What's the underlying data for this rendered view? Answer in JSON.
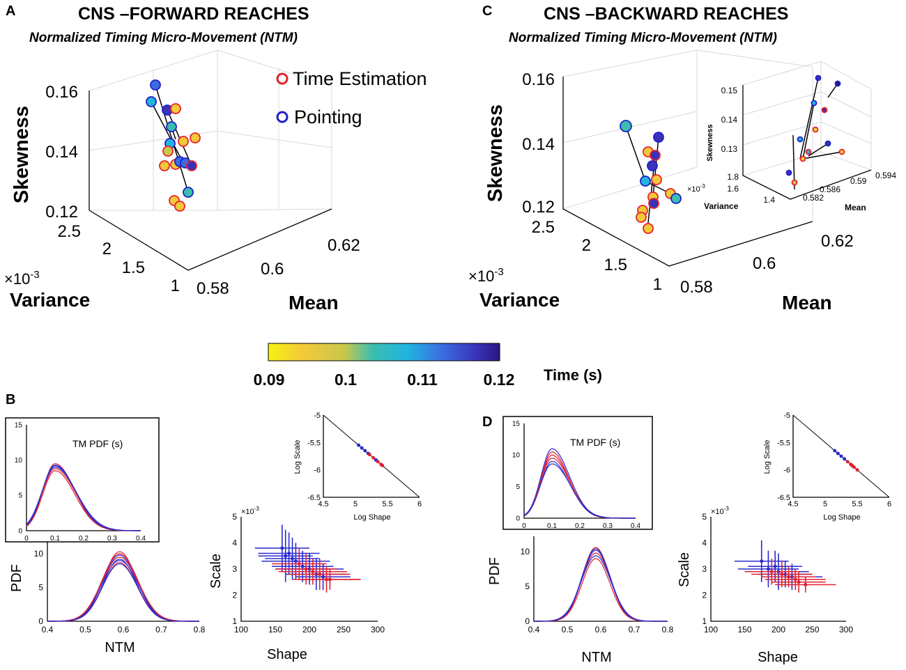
{
  "chart_data": [
    {
      "panel": "A",
      "type": "scatter3d",
      "title": "CNS –FORWARD REACHES",
      "subtitle": "Normalized Timing Micro-Movement (NTM)",
      "zlabel": "Skewness",
      "xlabel": "Mean",
      "ylabel": "Variance",
      "variance_exponent": "×10",
      "variance_exponent_power": "-3",
      "z_ticks": [
        "0.16",
        "0.14",
        "0.12"
      ],
      "variance_ticks": [
        "2.5",
        "2",
        "1.5",
        "1"
      ],
      "mean_ticks": [
        "0.58",
        "0.6",
        "0.62"
      ],
      "legend": [
        "Time Estimation",
        "Pointing"
      ],
      "legend_colors": [
        "#e8202a",
        "#2020c8"
      ]
    },
    {
      "panel": "C",
      "type": "scatter3d",
      "title": "CNS –BACKWARD REACHES",
      "subtitle": "Normalized Timing Micro-Movement (NTM)",
      "zlabel": "Skewness",
      "xlabel": "Mean",
      "ylabel": "Variance",
      "variance_exponent": "×10",
      "variance_exponent_power": "-3",
      "z_ticks": [
        "0.16",
        "0.14",
        "0.12"
      ],
      "variance_ticks": [
        "2.5",
        "2",
        "1.5",
        "1"
      ],
      "mean_ticks": [
        "0.58",
        "0.6",
        "0.62"
      ],
      "inset": {
        "zlabel": "Skewness",
        "xlabel": "Mean",
        "ylabel": "Variance",
        "z_ticks": [
          "0.15",
          "0.14",
          "0.13"
        ],
        "variance_ticks": [
          "1.8",
          "1.6",
          "1.4"
        ],
        "mean_ticks": [
          "0.582",
          "0.586",
          "0.59",
          "0.594"
        ],
        "exponent": "×10",
        "exponent_power": "-3"
      }
    },
    {
      "type": "colorbar",
      "label": "Time (s)",
      "ticks": [
        "0.09",
        "0.1",
        "0.11",
        "0.12"
      ],
      "range": [
        0.09,
        0.12
      ],
      "colormap": [
        "#f8f210",
        "#f2c93a",
        "#c8c84c",
        "#3cbdb0",
        "#21b5e0",
        "#3a6ee0",
        "#3a32b8",
        "#2a1880"
      ]
    },
    {
      "panel": "B",
      "type": "line",
      "inset_label": "TM PDF (s)",
      "inset_x_ticks": [
        "0",
        "0.1",
        "0.2",
        "0.3",
        "0.4"
      ],
      "inset_y_ticks": [
        "0",
        "5",
        "10",
        "15"
      ],
      "inset_peak": 9.5,
      "inset_mode": 0.1,
      "ylabel": "PDF",
      "xlabel": "NTM",
      "x_ticks": [
        "0.4",
        "0.5",
        "0.6",
        "0.7",
        "0.8"
      ],
      "y_ticks": [
        "0",
        "5",
        "10"
      ],
      "mode": 0.59,
      "peak_range": [
        8.5,
        10.3
      ]
    },
    {
      "panel": "B",
      "type": "scatter_errorbar",
      "ylabel": "Scale",
      "xlabel": "Shape",
      "exponent": "×10",
      "exponent_power": "-3",
      "x_ticks": [
        "100",
        "150",
        "200",
        "250",
        "300"
      ],
      "y_ticks": [
        "1",
        "2",
        "3",
        "4",
        "5"
      ],
      "inset": {
        "xlabel": "Log Shape",
        "ylabel": "Log Scale",
        "x_ticks": [
          "4.5",
          "5",
          "5.5",
          "6"
        ],
        "y_ticks": [
          "-5",
          "-5.5",
          "-6",
          "-6.5"
        ]
      }
    },
    {
      "panel": "D",
      "type": "line",
      "inset_label": "TM PDF (s)",
      "inset_x_ticks": [
        "0",
        "0.1",
        "0.2",
        "0.3",
        "0.4"
      ],
      "inset_y_ticks": [
        "0",
        "5",
        "10",
        "15"
      ],
      "inset_peak": 10.5,
      "inset_mode": 0.1,
      "ylabel": "PDF",
      "xlabel": "NTM",
      "x_ticks": [
        "0.4",
        "0.5",
        "0.6",
        "0.7",
        "0.8"
      ],
      "y_ticks": [
        "0",
        "5",
        "10"
      ],
      "mode": 0.585,
      "peak_range": [
        9.0,
        10.6
      ]
    },
    {
      "panel": "D",
      "type": "scatter_errorbar",
      "ylabel": "Scale",
      "xlabel": "Shape",
      "exponent": "×10",
      "exponent_power": "-3",
      "x_ticks": [
        "100",
        "150",
        "200",
        "250",
        "300"
      ],
      "y_ticks": [
        "1",
        "2",
        "3",
        "4",
        "5"
      ],
      "inset": {
        "xlabel": "Log Shape",
        "ylabel": "Log Scale",
        "x_ticks": [
          "4.5",
          "5",
          "5.5",
          "6"
        ],
        "y_ticks": [
          "-5",
          "-5.5",
          "-6",
          "-6.5"
        ]
      }
    }
  ],
  "panel_labels": [
    "A",
    "C",
    "B",
    "D"
  ]
}
